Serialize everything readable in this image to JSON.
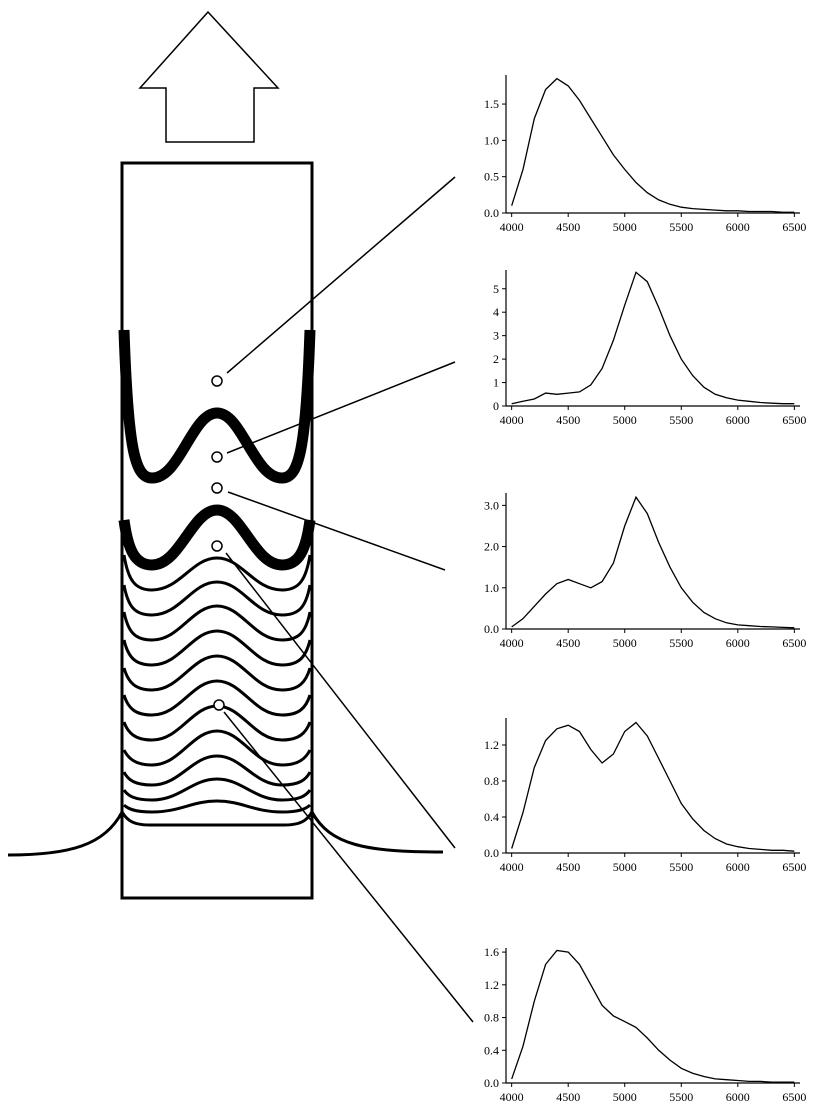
{
  "chart_data": [
    {
      "type": "line",
      "x": [
        4000,
        4100,
        4200,
        4300,
        4400,
        4500,
        4600,
        4700,
        4800,
        4900,
        5000,
        5100,
        5200,
        5300,
        5400,
        5500,
        5600,
        5700,
        5800,
        5900,
        6000,
        6100,
        6200,
        6300,
        6400,
        6500
      ],
      "series": [
        {
          "color": "#000000",
          "values": [
            0.1,
            0.6,
            1.3,
            1.7,
            1.85,
            1.75,
            1.55,
            1.3,
            1.05,
            0.8,
            0.6,
            0.42,
            0.28,
            0.18,
            0.12,
            0.08,
            0.06,
            0.05,
            0.04,
            0.03,
            0.03,
            0.02,
            0.02,
            0.02,
            0.01,
            0.01
          ]
        }
      ],
      "xlim": [
        3950,
        6550
      ],
      "ylim": [
        0,
        1.9
      ],
      "xticks": [
        4000,
        4500,
        5000,
        5500,
        6000,
        6500
      ],
      "yticks": [
        {
          "value": 0,
          "label": "0.0"
        },
        0.5,
        {
          "value": 1,
          "label": "1.0"
        },
        1.5
      ]
    },
    {
      "type": "line",
      "x": [
        4000,
        4100,
        4200,
        4300,
        4400,
        4500,
        4600,
        4700,
        4800,
        4900,
        5000,
        5100,
        5200,
        5300,
        5400,
        5500,
        5600,
        5700,
        5800,
        5900,
        6000,
        6100,
        6200,
        6300,
        6400,
        6500
      ],
      "series": [
        {
          "color": "#000000",
          "values": [
            0.1,
            0.2,
            0.3,
            0.55,
            0.5,
            0.55,
            0.6,
            0.9,
            1.6,
            2.8,
            4.3,
            5.7,
            5.3,
            4.2,
            3.0,
            2.0,
            1.3,
            0.8,
            0.5,
            0.35,
            0.25,
            0.2,
            0.15,
            0.12,
            0.1,
            0.1
          ]
        }
      ],
      "xlim": [
        3950,
        6550
      ],
      "ylim": [
        0,
        5.8
      ],
      "xticks": [
        4000,
        4500,
        5000,
        5500,
        6000,
        6500
      ],
      "yticks": [
        0,
        1,
        2,
        3,
        4,
        5
      ]
    },
    {
      "type": "line",
      "x": [
        4000,
        4100,
        4200,
        4300,
        4400,
        4500,
        4600,
        4700,
        4800,
        4900,
        5000,
        5100,
        5200,
        5300,
        5400,
        5500,
        5600,
        5700,
        5800,
        5900,
        6000,
        6100,
        6200,
        6300,
        6400,
        6500
      ],
      "series": [
        {
          "color": "#000000",
          "values": [
            0.05,
            0.25,
            0.55,
            0.85,
            1.1,
            1.2,
            1.1,
            1.0,
            1.15,
            1.6,
            2.5,
            3.2,
            2.8,
            2.1,
            1.5,
            1.0,
            0.65,
            0.4,
            0.25,
            0.15,
            0.1,
            0.08,
            0.06,
            0.05,
            0.04,
            0.03
          ]
        }
      ],
      "xlim": [
        3950,
        6550
      ],
      "ylim": [
        0,
        3.3
      ],
      "xticks": [
        4000,
        4500,
        5000,
        5500,
        6000,
        6500
      ],
      "yticks": [
        {
          "value": 0,
          "label": "0.0"
        },
        {
          "value": 1,
          "label": "1.0"
        },
        {
          "value": 2,
          "label": "2.0"
        },
        {
          "value": 3,
          "label": "3.0"
        }
      ]
    },
    {
      "type": "line",
      "x": [
        4000,
        4100,
        4200,
        4300,
        4400,
        4500,
        4600,
        4700,
        4800,
        4900,
        5000,
        5100,
        5200,
        5300,
        5400,
        5500,
        5600,
        5700,
        5800,
        5900,
        6000,
        6100,
        6200,
        6300,
        6400,
        6500
      ],
      "series": [
        {
          "color": "#000000",
          "values": [
            0.05,
            0.45,
            0.95,
            1.25,
            1.38,
            1.42,
            1.35,
            1.15,
            1.0,
            1.1,
            1.35,
            1.45,
            1.3,
            1.05,
            0.8,
            0.55,
            0.38,
            0.25,
            0.16,
            0.1,
            0.07,
            0.05,
            0.04,
            0.03,
            0.03,
            0.02
          ]
        }
      ],
      "xlim": [
        3950,
        6550
      ],
      "ylim": [
        0,
        1.5
      ],
      "xticks": [
        4000,
        4500,
        5000,
        5500,
        6000,
        6500
      ],
      "yticks": [
        {
          "value": 0,
          "label": "0.0"
        },
        0.4,
        0.8,
        1.2
      ]
    },
    {
      "type": "line",
      "x": [
        4000,
        4100,
        4200,
        4300,
        4400,
        4500,
        4600,
        4700,
        4800,
        4900,
        5000,
        5100,
        5200,
        5300,
        5400,
        5500,
        5600,
        5700,
        5800,
        5900,
        6000,
        6100,
        6200,
        6300,
        6400,
        6500
      ],
      "series": [
        {
          "color": "#000000",
          "values": [
            0.05,
            0.45,
            1.0,
            1.45,
            1.62,
            1.6,
            1.45,
            1.2,
            0.95,
            0.82,
            0.75,
            0.68,
            0.55,
            0.4,
            0.28,
            0.18,
            0.12,
            0.08,
            0.05,
            0.04,
            0.03,
            0.02,
            0.02,
            0.01,
            0.01,
            0.01
          ]
        }
      ],
      "xlim": [
        3950,
        6550
      ],
      "ylim": [
        0,
        1.65
      ],
      "xticks": [
        4000,
        4500,
        5000,
        5500,
        6000,
        6500
      ],
      "yticks": [
        {
          "value": 0,
          "label": "0.0"
        },
        0.4,
        0.8,
        1.2,
        1.6
      ]
    }
  ]
}
